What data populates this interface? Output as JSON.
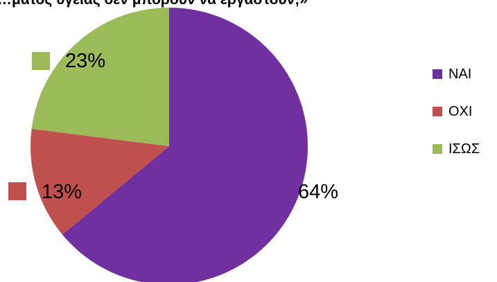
{
  "chart_data": {
    "type": "pie",
    "title": "…ματος υγείας δεν μπορούν να εργαστούν;»",
    "categories": [
      "ΝΑΙ",
      "ΟΧΙ",
      "ΙΣΩΣ"
    ],
    "values": [
      64,
      13,
      23
    ],
    "labels": [
      "64%",
      "13%",
      "23%"
    ],
    "colors": [
      "#7030A0",
      "#C0504D",
      "#9BBB59"
    ],
    "legend_position": "right"
  }
}
